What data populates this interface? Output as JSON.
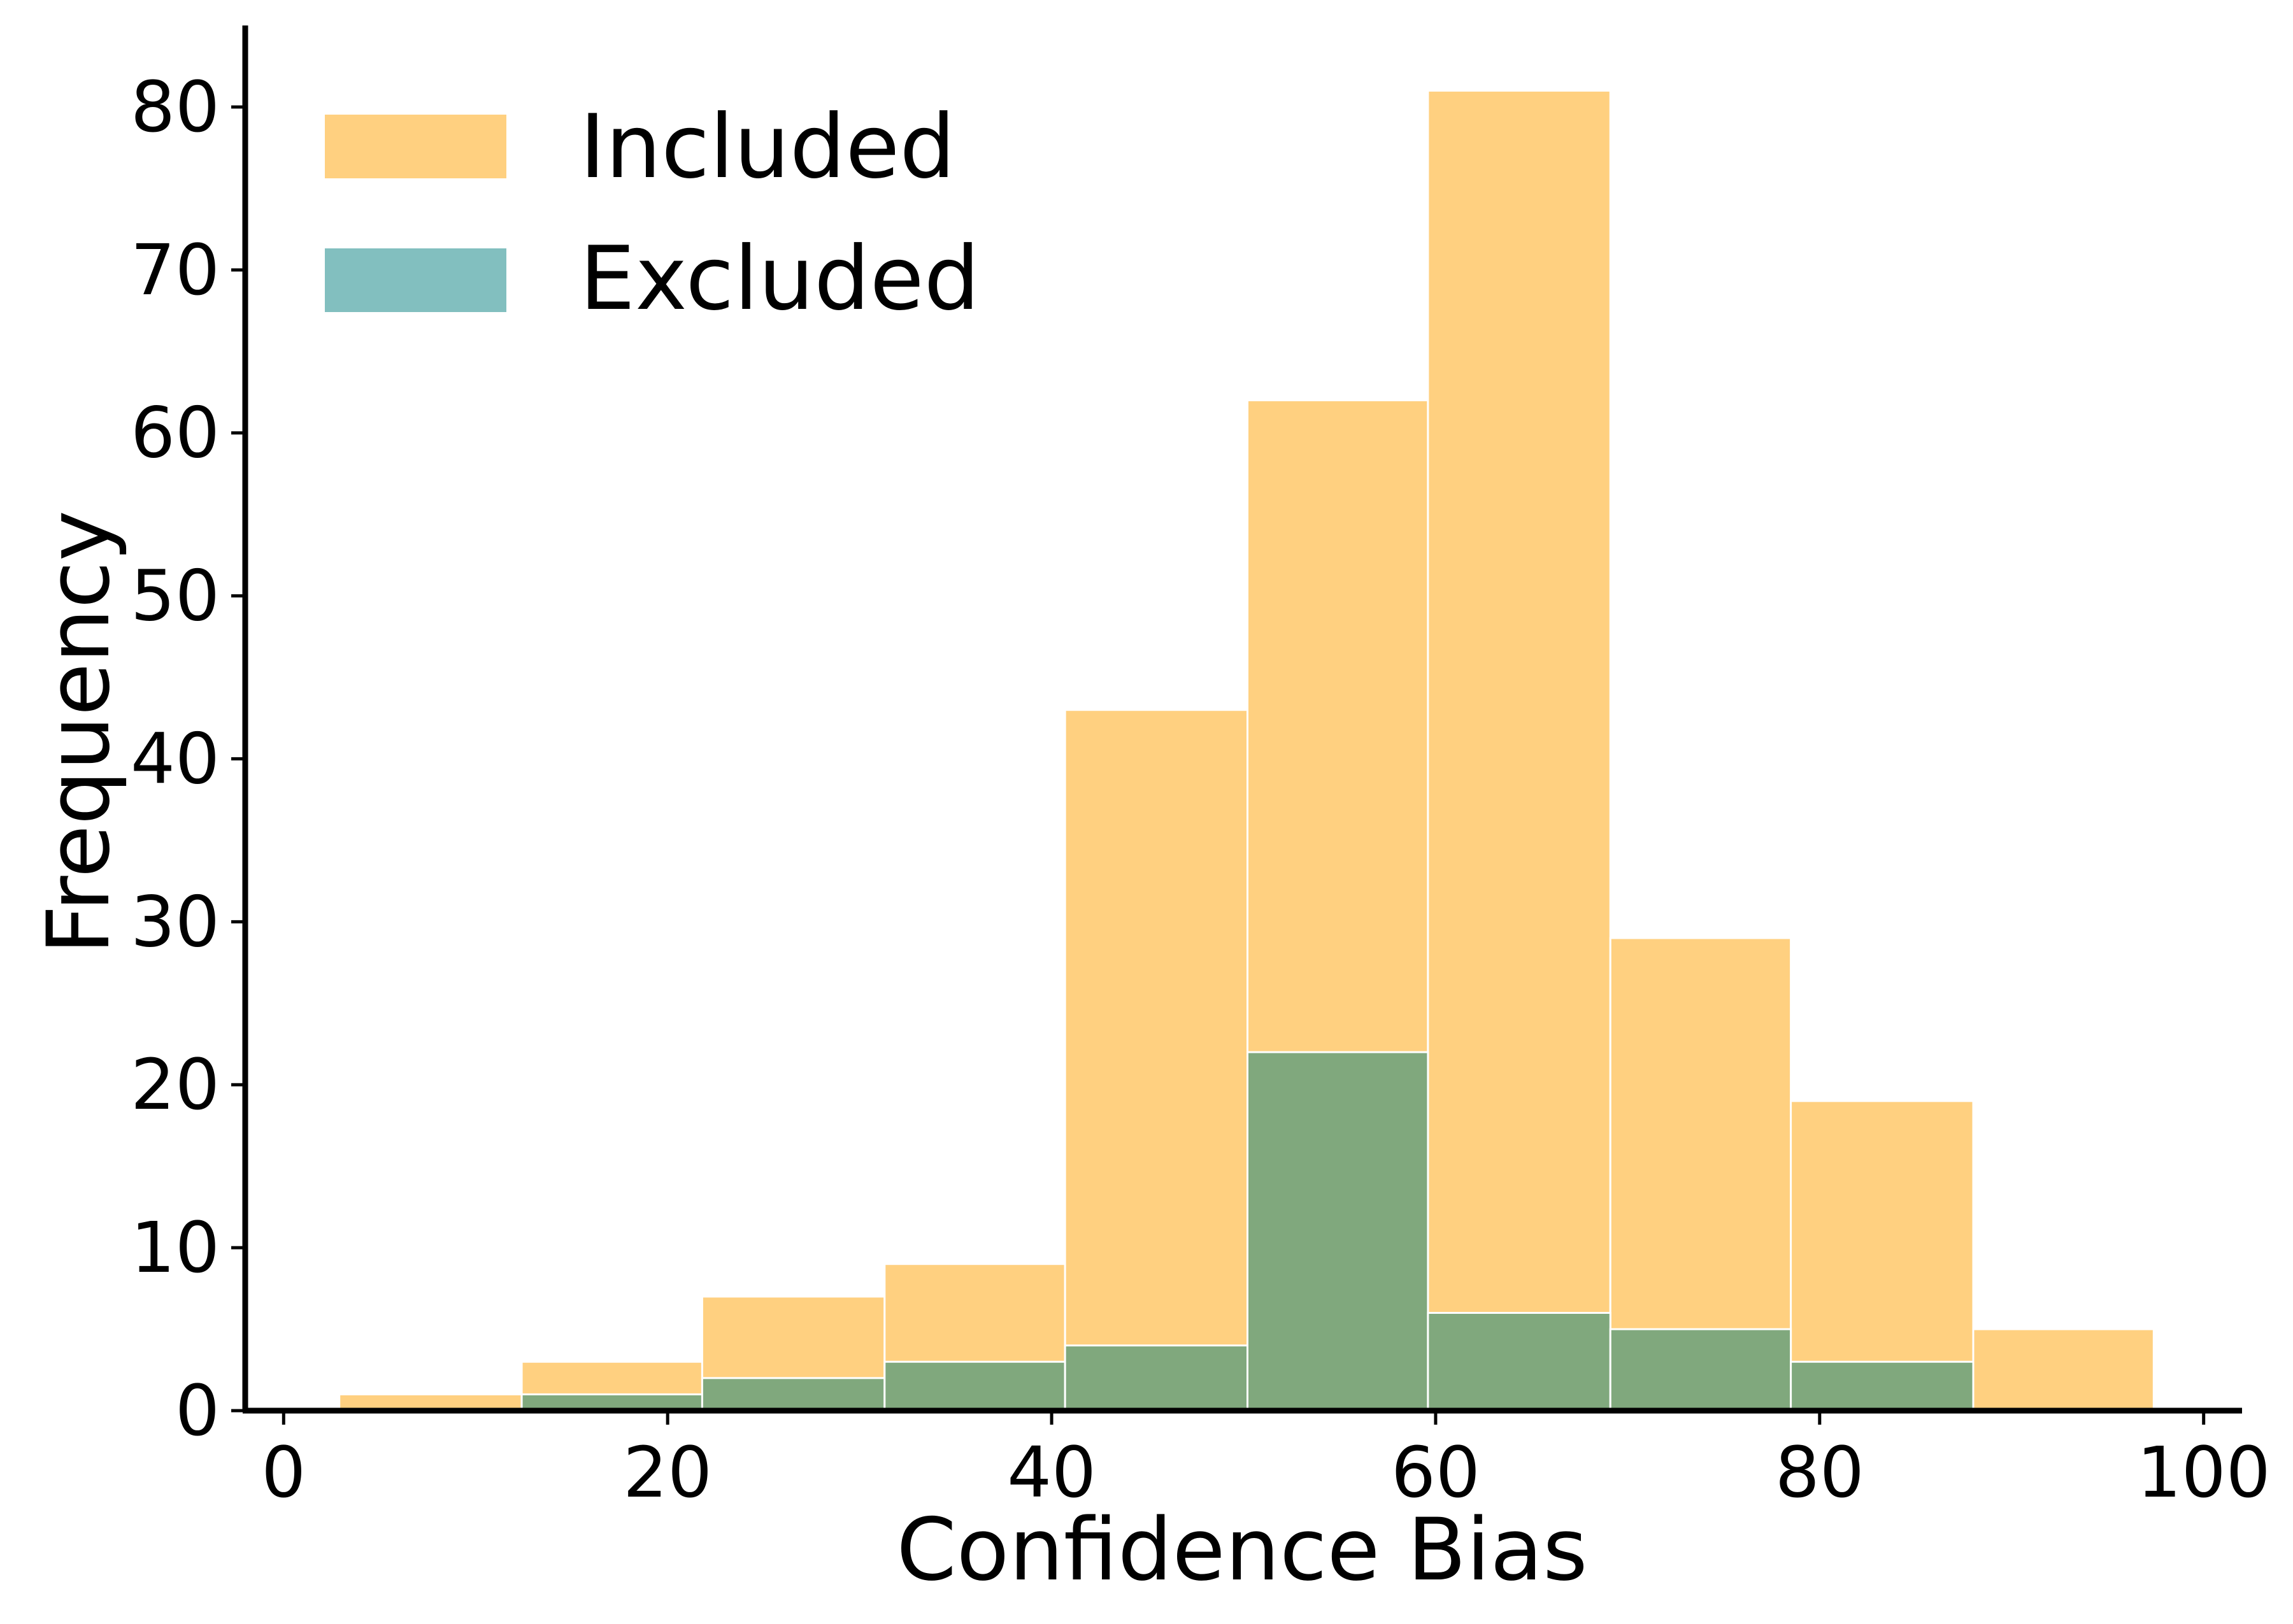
{
  "chart_data": {
    "type": "bar",
    "title": "",
    "xlabel": "Confidence Bias",
    "ylabel": "Frequency",
    "xlim": [
      -2,
      102
    ],
    "ylim": [
      0,
      85
    ],
    "x_ticks": [
      0,
      20,
      40,
      60,
      80,
      100
    ],
    "y_ticks": [
      0,
      10,
      20,
      30,
      40,
      50,
      60,
      70,
      80
    ],
    "grid": false,
    "legend_position": "top-left",
    "bin_edges": [
      2.9,
      12.4,
      21.8,
      31.3,
      40.7,
      50.2,
      59.6,
      69.1,
      78.5,
      88.0,
      97.4
    ],
    "series": [
      {
        "name": "Included",
        "color": "#FFD080",
        "values": [
          1,
          3,
          7,
          9,
          43,
          62,
          81,
          29,
          19,
          5
        ]
      },
      {
        "name": "Excluded",
        "color": "#82BFBF",
        "values": [
          0,
          1,
          2,
          3,
          4,
          22,
          6,
          5,
          3,
          0
        ]
      }
    ],
    "overlap_color": "#80A87D"
  }
}
